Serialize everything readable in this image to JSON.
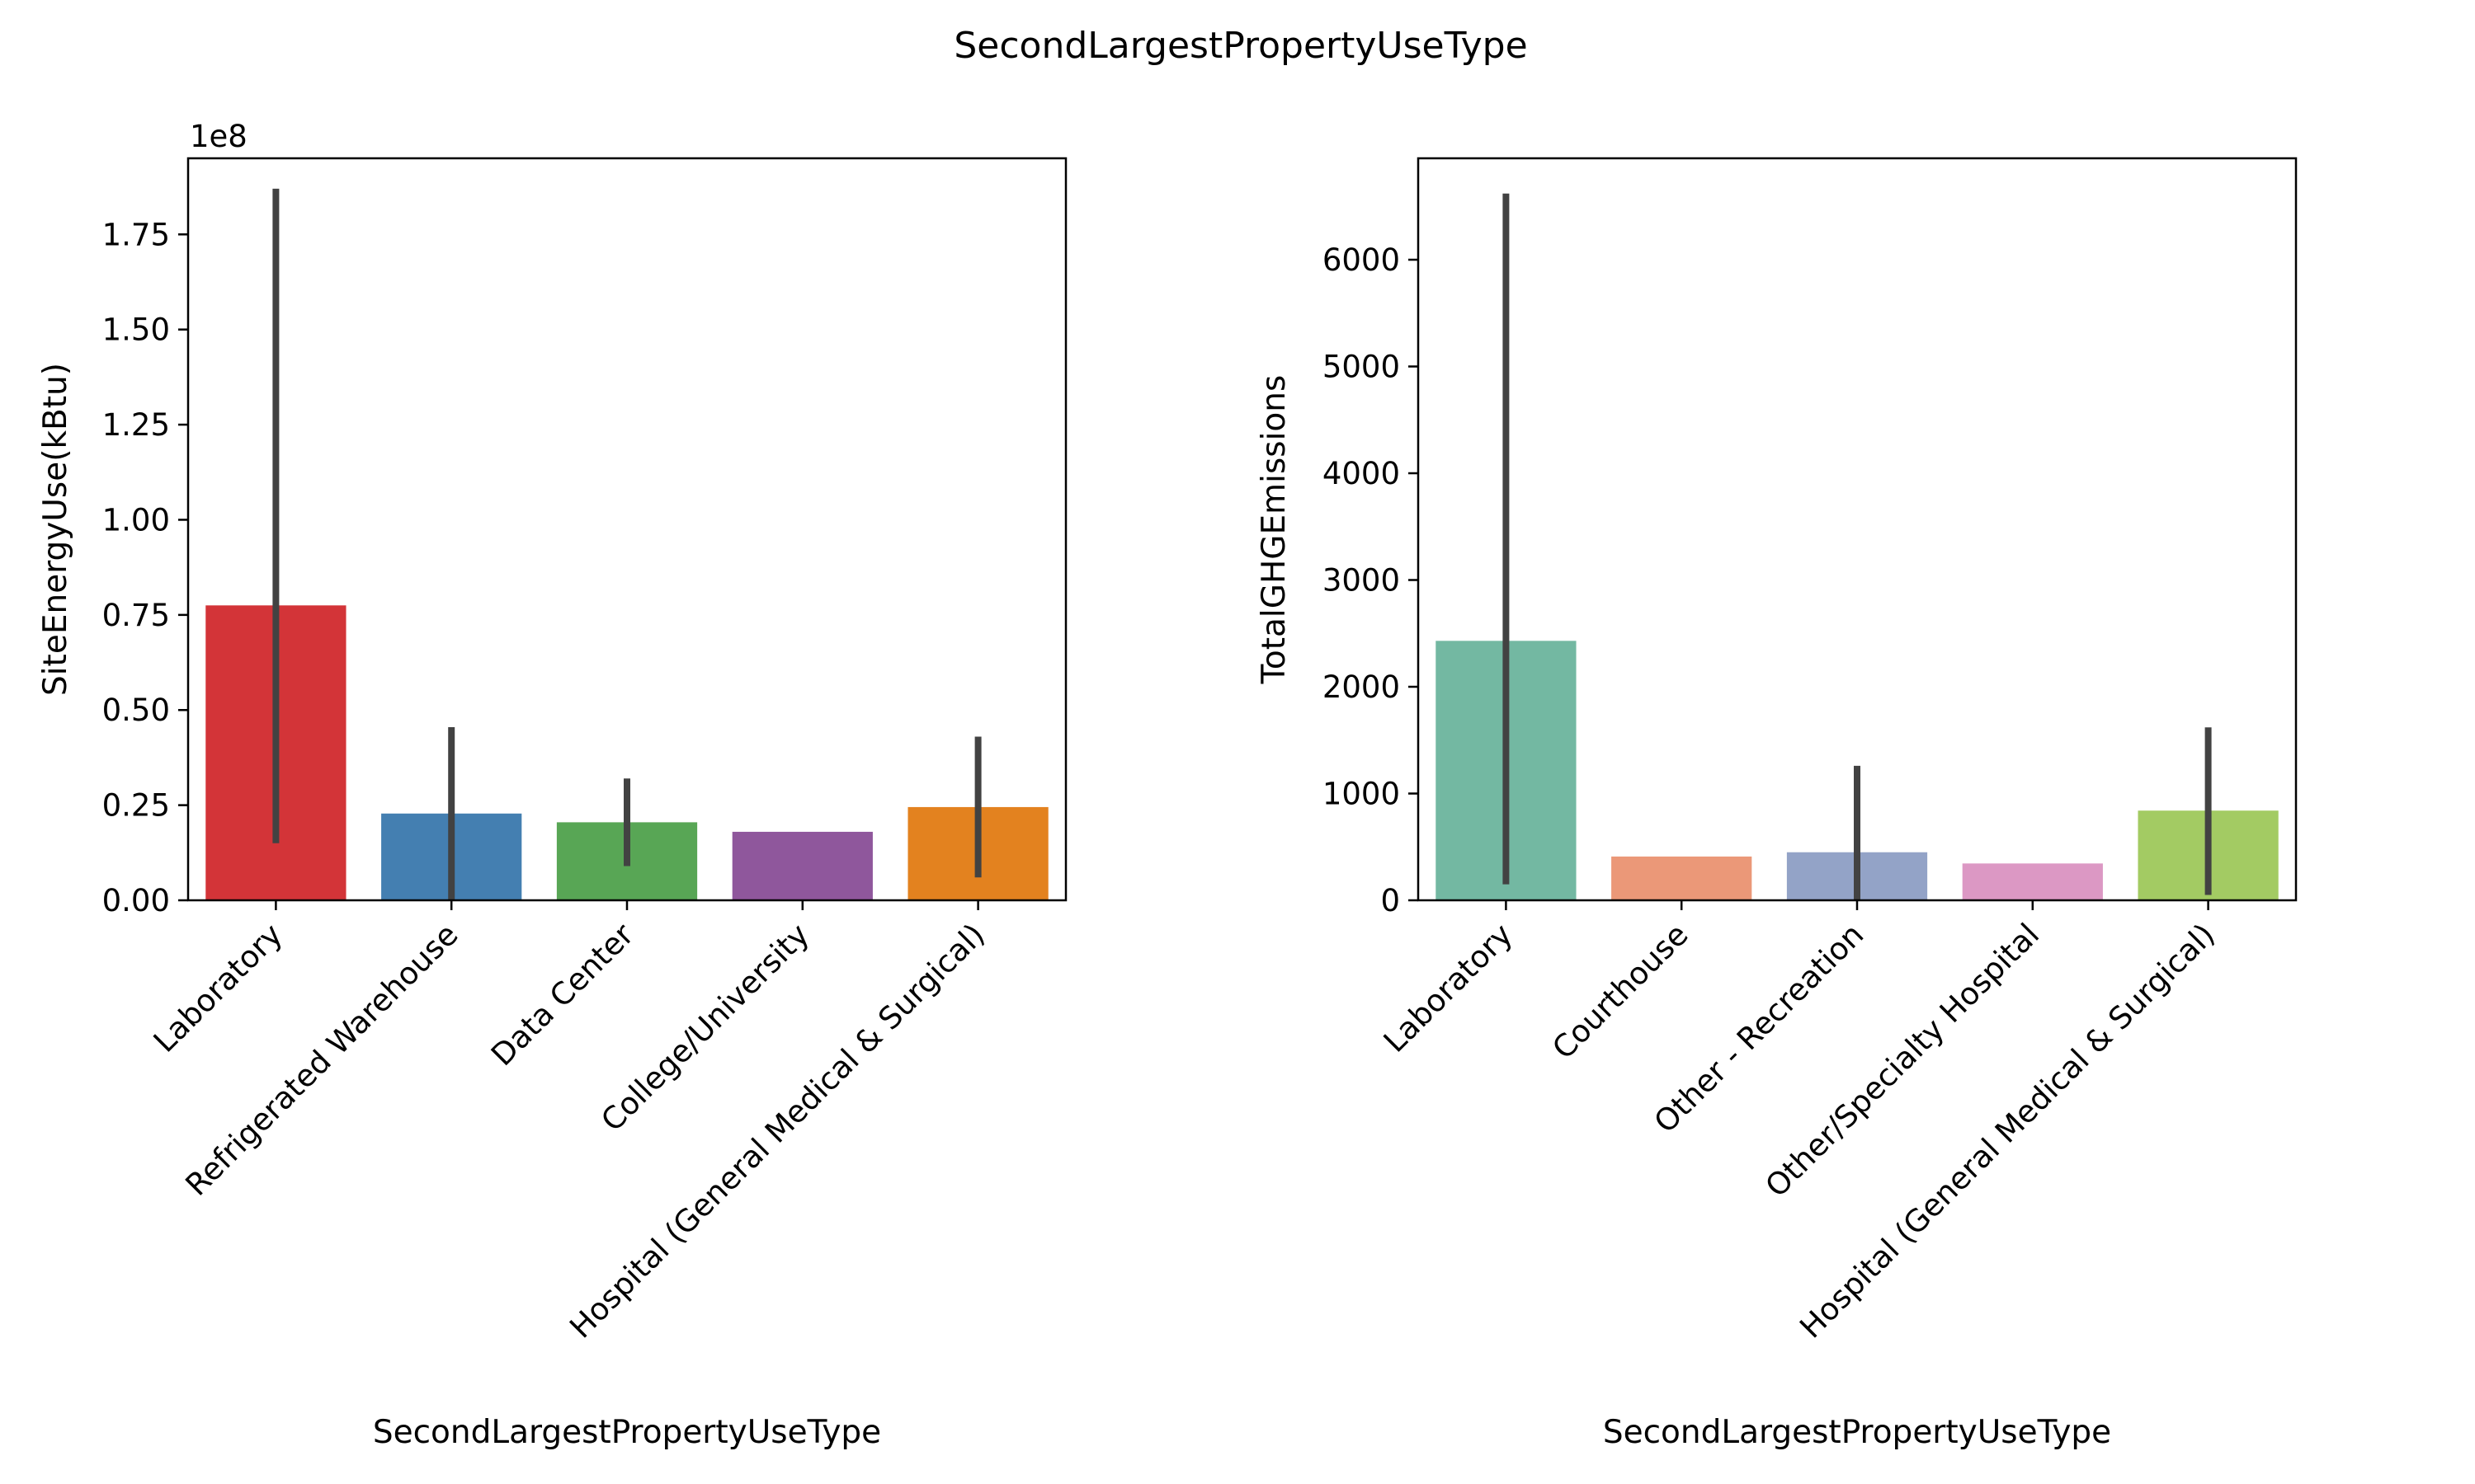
{
  "figure": {
    "title": "SecondLargestPropertyUseType"
  },
  "chart_data": [
    {
      "type": "bar",
      "title": "",
      "xlabel": "SecondLargestPropertyUseType",
      "ylabel": "SiteEnergyUse(kBtu)",
      "y_offset_label": "1e8",
      "y_multiplier": 100000000,
      "ylim": [
        0,
        1.95
      ],
      "yticks": [
        0.0,
        0.25,
        0.5,
        0.75,
        1.0,
        1.25,
        1.5,
        1.75
      ],
      "ytick_labels": [
        "0.00",
        "0.25",
        "0.50",
        "0.75",
        "1.00",
        "1.25",
        "1.50",
        "1.75"
      ],
      "grid": false,
      "categories": [
        "Laboratory",
        "Refrigerated Warehouse",
        "Data Center",
        "College/University",
        "Hospital (General Medical & Surgical)"
      ],
      "values": [
        0.775,
        0.228,
        0.205,
        0.18,
        0.245
      ],
      "error_low": [
        0.15,
        0.0,
        0.09,
        null,
        0.06
      ],
      "error_high": [
        1.87,
        0.455,
        0.32,
        null,
        0.43
      ],
      "colors": [
        "#d33438",
        "#447fb1",
        "#58a655",
        "#8f579c",
        "#e3821f"
      ]
    },
    {
      "type": "bar",
      "title": "",
      "xlabel": "SecondLargestPropertyUseType",
      "ylabel": "TotalGHGEmissions",
      "ylim": [
        0,
        6950
      ],
      "yticks": [
        0,
        1000,
        2000,
        3000,
        4000,
        5000,
        6000
      ],
      "ytick_labels": [
        "0",
        "1000",
        "2000",
        "3000",
        "4000",
        "5000",
        "6000"
      ],
      "grid": false,
      "categories": [
        "Laboratory",
        "Courthouse",
        "Other - Recreation",
        "Other/Specialty Hospital",
        "Hospital (General Medical & Surgical)"
      ],
      "values": [
        2430,
        410,
        450,
        345,
        840
      ],
      "error_low": [
        150,
        null,
        0,
        null,
        50
      ],
      "error_high": [
        6620,
        null,
        1260,
        null,
        1620
      ],
      "colors": [
        "#73b8a2",
        "#eb9878",
        "#93a3c7",
        "#dc98c4",
        "#a3cb63"
      ]
    }
  ]
}
